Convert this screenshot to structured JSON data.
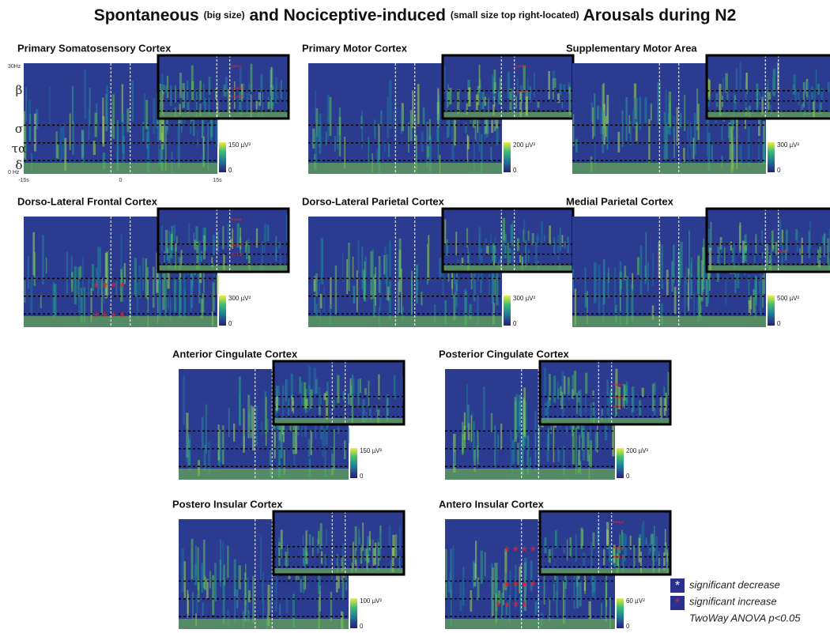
{
  "title_parts": [
    "Spontaneous",
    "(big size)",
    "and Nociceptive-induced",
    "(small size top right-located)",
    "Arousals during N2"
  ],
  "panels": [
    {
      "title": "Primary Somatosensory Cortex",
      "max": "150 µV²",
      "min": "0",
      "axis": {
        "top": "30Hz",
        "bottom": "0 Hz",
        "left": "-15s",
        "center": "0",
        "right": "15s",
        "bands": [
          "β",
          "σ",
          "τα",
          "δ"
        ]
      }
    },
    {
      "title": "Primary Motor Cortex",
      "max": "200 µV²",
      "min": "0"
    },
    {
      "title": "Supplementary Motor Area",
      "max": "300 µV²",
      "min": "0"
    },
    {
      "title": "Dorso-Lateral Frontal Cortex",
      "max": "300 µV²",
      "min": "0"
    },
    {
      "title": "Dorso-Lateral Parietal Cortex",
      "max": "300 µV²",
      "min": "0"
    },
    {
      "title": "Medial Parietal Cortex",
      "max": "500 µV²",
      "min": "0"
    },
    {
      "title": "Anterior Cingulate Cortex",
      "max": "150 µV²",
      "min": "0"
    },
    {
      "title": "Posterior Cingulate Cortex",
      "max": "200 µV²",
      "min": "0"
    },
    {
      "title": "Postero Insular Cortex",
      "max": "100 µV²",
      "min": "0"
    },
    {
      "title": "Antero Insular Cortex",
      "max": "60 µV²",
      "min": "0"
    }
  ],
  "legend": {
    "decrease": "significant decrease",
    "increase": "significant increase",
    "test": "TwoWay ANOVA p<0.05"
  }
}
